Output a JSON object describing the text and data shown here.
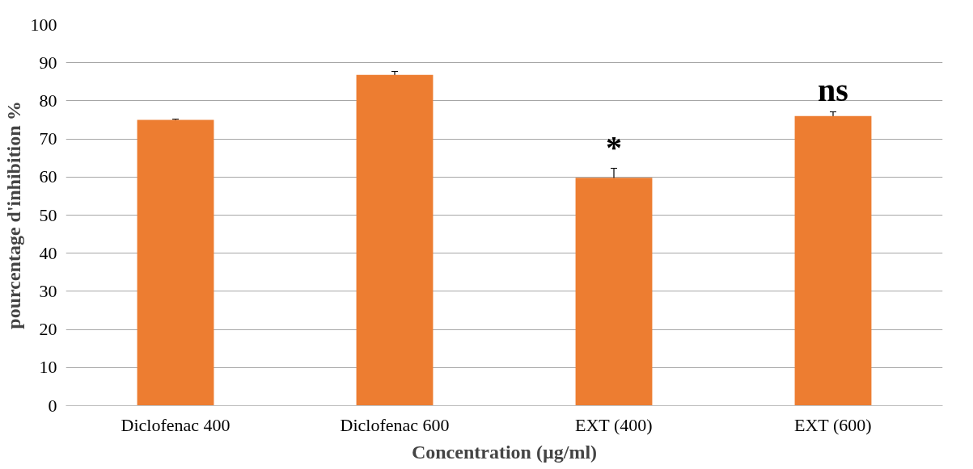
{
  "chart_data": {
    "type": "bar",
    "xlabel": "Concentration (µg/ml)",
    "ylabel": "pourcentage d'inhibition %",
    "categories": [
      "Diclofenac 400",
      "Diclofenac 600",
      "EXT (400)",
      "EXT (600)"
    ],
    "values": [
      75,
      86.8,
      59.8,
      76
    ],
    "errors": [
      0.2,
      0.9,
      2.5,
      1.1
    ],
    "color": "#ed7d31",
    "ylim": [
      0,
      100
    ],
    "yticks": [
      0,
      10,
      20,
      30,
      40,
      50,
      60,
      70,
      80,
      90,
      100
    ],
    "grid": "y",
    "annotations": [
      {
        "text": "*",
        "x": "EXT (400)",
        "y": 63
      },
      {
        "text": "ns",
        "x": "EXT (600)",
        "y": 78
      }
    ]
  }
}
